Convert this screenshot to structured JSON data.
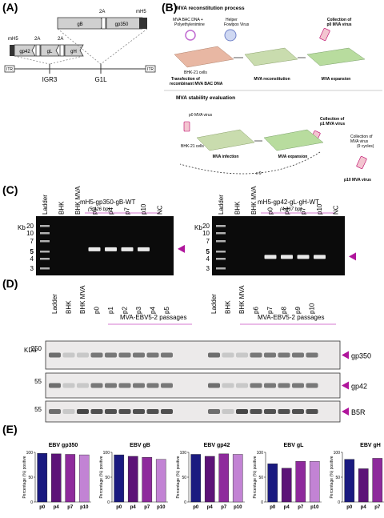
{
  "panels": {
    "a": "(A)",
    "b": "(B)",
    "c": "(C)",
    "d": "(D)",
    "e": "(E)"
  },
  "panel_a": {
    "top": {
      "gene1": "gB",
      "gene2": "gp350",
      "site": "2A",
      "promoter": "mH5"
    },
    "bottom": {
      "promoter": "mH5",
      "site1": "2A",
      "site2": "2A",
      "gene1": "gp42",
      "gene2": "gL",
      "gene3": "gH"
    },
    "itr_left": "ITR",
    "itr_right": "ITR",
    "site_igr3": "IGR3",
    "site_g1l": "G1L"
  },
  "panel_b": {
    "heading1": "MVA reconstitution process",
    "reagent1": "MVA BAC DNA +",
    "reagent2": "Polyethylenimine",
    "reagent3": "Helper",
    "reagent4": "Fowlpox Virus",
    "collect_p0_1": "Collection of",
    "collect_p0_2": "p0 MVA virus",
    "bhk_cells": "BHK-21 cells",
    "step1_1": "Transfection of",
    "step1_2": "recombinant MVA BAC DNA",
    "step2": "MVA reconstitution",
    "step3": "MVA expansion",
    "heading2": "MVA stability evaluation",
    "p0_virus": "p0 MVA virus",
    "collect_p1_1": "Collection of",
    "collect_p1_2": "p1 MVA virus",
    "bhk_cells_2": "BHK-21 cells",
    "step4": "MVA infection",
    "step5": "MVA expansion",
    "cycles_1": "Collection of",
    "cycles_2": "MVA virus",
    "cycles_3": "(9 cycles)",
    "p10_virus": "p10 MVA virus",
    "cycle_count": "x 9"
  },
  "panel_c": {
    "kb_label": "Kb",
    "ladder_sizes": [
      "20",
      "10",
      "7",
      "5",
      "4",
      "3"
    ],
    "highlight_size": "5",
    "gels": [
      {
        "title": "mH5-gp350-gB-WT",
        "size": "(5,426 bp)",
        "lanes": [
          "Ladder",
          "BHK",
          "BHK MVA",
          "p0",
          "p4",
          "p7",
          "p10",
          "NC"
        ],
        "band_kb": 5.426
      },
      {
        "title": "mH5-gp42-gL-gH-WT",
        "size": "(4,267 bp)",
        "lanes": [
          "Ladder",
          "BHK",
          "BHK MVA",
          "p0",
          "p4",
          "p7",
          "p10",
          "NC"
        ],
        "band_kb": 4.267
      }
    ]
  },
  "panel_d": {
    "kda_label": "KDa",
    "groups": [
      {
        "title": "MVA-EBV5-2 passages",
        "lanes": [
          "Ladder",
          "BHK",
          "BHK MVA",
          "p0",
          "p1",
          "p2",
          "p3",
          "p4",
          "p5"
        ]
      },
      {
        "title": "MVA-EBV5-2 passages",
        "lanes": [
          "Ladder",
          "BHK",
          "BHK MVA",
          "p6",
          "p7",
          "p8",
          "p9",
          "p10"
        ]
      }
    ],
    "blots": [
      {
        "label": "gp350",
        "mw": "250"
      },
      {
        "label": "gp42",
        "mw": "55"
      },
      {
        "label": "B5R",
        "mw": "55"
      }
    ]
  },
  "chart_data": [
    {
      "type": "bar",
      "title": "EBV gp350",
      "categories": [
        "p0",
        "p4",
        "p7",
        "p10"
      ],
      "values": [
        98,
        97,
        96,
        95
      ],
      "ylabel": "Percentage (%) positive",
      "ylim": [
        0,
        100
      ],
      "colors": [
        "#1a1a80",
        "#5c1378",
        "#8e2a9c",
        "#c283d4"
      ]
    },
    {
      "type": "bar",
      "title": "EBV gB",
      "categories": [
        "p0",
        "p4",
        "p7",
        "p10"
      ],
      "values": [
        95,
        92,
        90,
        86
      ],
      "ylabel": "Percentage (%) positive",
      "ylim": [
        0,
        100
      ],
      "colors": [
        "#1a1a80",
        "#5c1378",
        "#8e2a9c",
        "#c283d4"
      ]
    },
    {
      "type": "bar",
      "title": "EBV gp42",
      "categories": [
        "p0",
        "p4",
        "p7",
        "p10"
      ],
      "values": [
        96,
        92,
        97,
        96
      ],
      "ylabel": "Percentage (%) positive",
      "ylim": [
        0,
        100
      ],
      "colors": [
        "#1a1a80",
        "#5c1378",
        "#8e2a9c",
        "#c283d4"
      ]
    },
    {
      "type": "bar",
      "title": "EBV gL",
      "categories": [
        "p0",
        "p4",
        "p7",
        "p10"
      ],
      "values": [
        77,
        68,
        82,
        82
      ],
      "ylabel": "Percentage (%) positive",
      "ylim": [
        0,
        100
      ],
      "colors": [
        "#1a1a80",
        "#5c1378",
        "#8e2a9c",
        "#c283d4"
      ]
    },
    {
      "type": "bar",
      "title": "EBV gH",
      "categories": [
        "p0",
        "p4",
        "p7",
        "p10"
      ],
      "values": [
        86,
        67,
        88,
        86
      ],
      "ylabel": "Percentage (%) positive",
      "ylim": [
        0,
        100
      ],
      "colors": [
        "#1a1a80",
        "#5c1378",
        "#8e2a9c",
        "#c283d4"
      ]
    }
  ]
}
